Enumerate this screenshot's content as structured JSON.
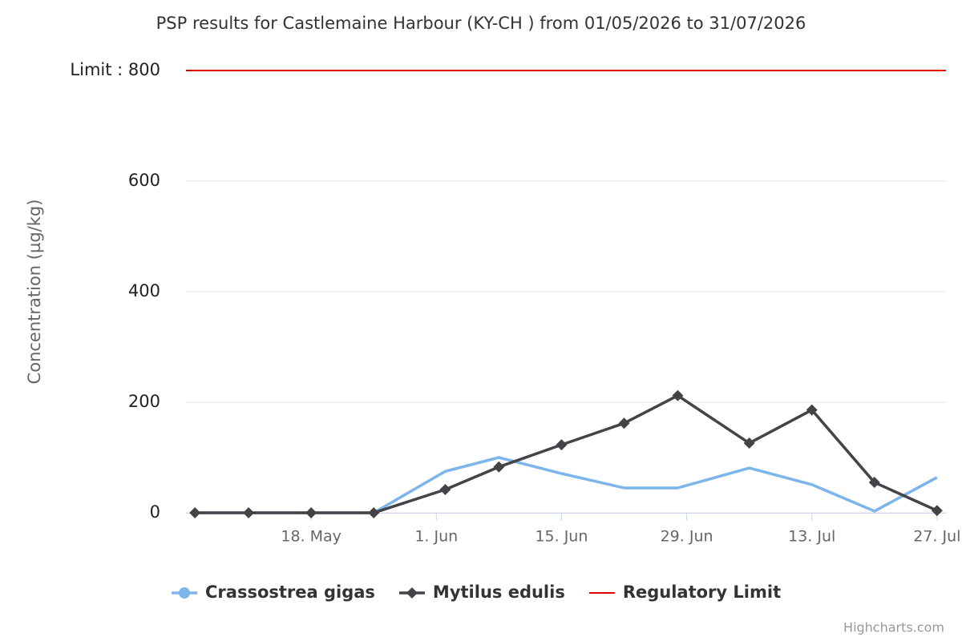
{
  "chart_data": {
    "type": "line",
    "title": "PSP results for Castlemaine Harbour (KY-CH ) from 01/05/2026 to 31/07/2026",
    "y_label": "Concentration (µg/kg)",
    "x": [
      "05-05",
      "05-11",
      "05-18",
      "05-25",
      "06-02",
      "06-08",
      "06-15",
      "06-22",
      "06-28",
      "07-06",
      "07-13",
      "07-20",
      "07-27"
    ],
    "series": [
      {
        "name": "Crassostrea gigas",
        "color": "#7cb5ec",
        "marker": false,
        "values": [
          0,
          0,
          0,
          0,
          75,
          100,
          71,
          45,
          45,
          81,
          51,
          3,
          64
        ]
      },
      {
        "name": "Mytilus edulis",
        "color": "#434348",
        "marker": true,
        "values": [
          0,
          0,
          0,
          0,
          42,
          83,
          123,
          162,
          212,
          126,
          186,
          55,
          4
        ]
      }
    ],
    "limit": {
      "name": "Regulatory Limit",
      "color": "#e00000",
      "value": 800
    },
    "xlim": [
      "05-04",
      "07-28"
    ],
    "xticks": [
      {
        "value": "05-18",
        "label": "18. May"
      },
      {
        "value": "06-01",
        "label": "1. Jun"
      },
      {
        "value": "06-15",
        "label": "15. Jun"
      },
      {
        "value": "06-29",
        "label": "29. Jun"
      },
      {
        "value": "07-13",
        "label": "13. Jul"
      },
      {
        "value": "07-27",
        "label": "27. Jul"
      }
    ],
    "ylim": [
      0,
      800
    ],
    "yticks": [
      0,
      200,
      400,
      600,
      {
        "value": 800,
        "label": "Limit : 800"
      }
    ],
    "grid": true,
    "legend": "bottom",
    "credits": "Highcharts.com"
  }
}
